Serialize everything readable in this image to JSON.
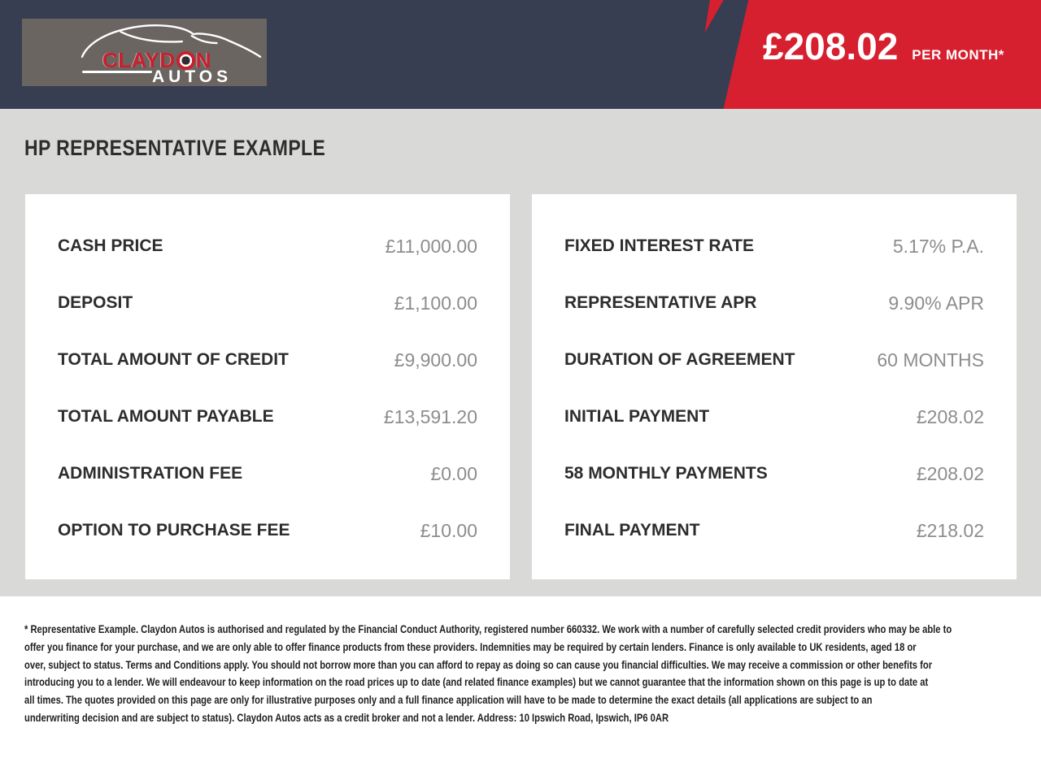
{
  "header": {
    "logo": {
      "brand": "CLAYDON",
      "sub": "AUTOS"
    },
    "monthly_price": "£208.02",
    "monthly_price_suffix": "PER MONTH*"
  },
  "page_title": "HP REPRESENTATIVE EXAMPLE",
  "finance": {
    "left": [
      {
        "label": "CASH PRICE",
        "value": "£11,000.00"
      },
      {
        "label": "DEPOSIT",
        "value": "£1,100.00"
      },
      {
        "label": "TOTAL AMOUNT OF CREDIT",
        "value": "£9,900.00"
      },
      {
        "label": "TOTAL AMOUNT PAYABLE",
        "value": "£13,591.20"
      },
      {
        "label": "ADMINISTRATION FEE",
        "value": "£0.00"
      },
      {
        "label": "OPTION TO PURCHASE FEE",
        "value": "£10.00"
      }
    ],
    "right": [
      {
        "label": "FIXED INTEREST RATE",
        "value": "5.17% P.A."
      },
      {
        "label": "REPRESENTATIVE APR",
        "value": "9.90% APR"
      },
      {
        "label": "DURATION OF AGREEMENT",
        "value": "60 MONTHS"
      },
      {
        "label": "INITIAL PAYMENT",
        "value": "£208.02"
      },
      {
        "label": "58 MONTHLY PAYMENTS",
        "value": "£208.02"
      },
      {
        "label": "FINAL PAYMENT",
        "value": "£218.02"
      }
    ]
  },
  "disclaimer_lines": [
    "* Representative Example. Claydon Autos is authorised and regulated by the Financial Conduct Authority, registered number 660332. We work with a number of carefully selected credit providers who may be able to",
    "offer you finance for your purchase, and we are only able to offer finance products from these providers. Indemnities may be required by certain lenders. Finance is only available to UK residents, aged 18 or",
    "over, subject to status. Terms and Conditions apply. You should not borrow more than you can afford to repay as doing so can cause you financial difficulties. We may receive a commission or other benefits for",
    "introducing you to a lender. We will endeavour to keep information on the road prices up to date (and related finance examples) but we cannot guarantee that the information shown on this page is up to date at",
    "all times. The quotes provided on this page are only for illustrative purposes only and a full finance application will have to be made to determine the exact details (all applications are subject to an",
    "underwriting decision and are subject to status). Claydon Autos acts as a credit broker and not a lender. Address: 10 Ipswich Road, Ipswich, IP6 0AR"
  ],
  "colors": {
    "banner_navy": "#373e52",
    "accent_red": "#d7202f",
    "logo_red": "#c8202d",
    "logo_box_gray": "#6b6561",
    "body_gray": "#d9d9d7",
    "label_dark": "#2d2d2d",
    "value_gray": "#8d8d8d"
  }
}
